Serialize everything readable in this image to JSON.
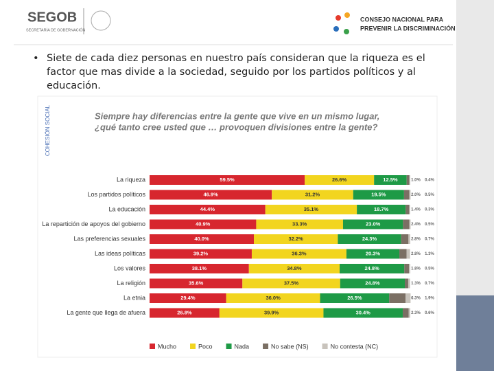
{
  "header": {
    "logo_left": "SEGOB",
    "logo_left_sub": "SECRETARÍA DE GOBERNACIÓN",
    "logo_right_line1": "CONSEJO NACIONAL PARA",
    "logo_right_line2": "PREVENIR LA DISCRIMINACIÓN"
  },
  "bullet": "Siete de cada diez personas en nuestro país consideran que la riqueza es el factor que mas divide a la sociedad, seguido por los partidos políticos y al educación.",
  "chart_data": {
    "type": "bar",
    "orientation": "horizontal",
    "stacked": true,
    "side_label": "COHESIÓN SOCIAL",
    "title": [
      "Siempre hay diferencias entre la gente que vive en un mismo lugar,",
      "¿qué tanto cree usted que … provoquen divisiones entre la gente?"
    ],
    "categories": [
      "La riqueza",
      "Los partidos políticos",
      "La educación",
      "La repartición de apoyos del gobierno",
      "Las preferencias sexuales",
      "Las ideas políticas",
      "Los valores",
      "La religión",
      "La etnia",
      "La gente que llega de afuera"
    ],
    "series": [
      {
        "name": "Mucho",
        "color": "#d7262e",
        "values": [
          59.5,
          46.9,
          44.4,
          40.9,
          40.0,
          39.2,
          38.1,
          35.6,
          29.4,
          26.8
        ],
        "value_labels": [
          "59.5%",
          "46.9%",
          "44.4%",
          "40.9%",
          "40.0%",
          "39.2%",
          "38.1%",
          "35.6%",
          "29.4%",
          "26.8%"
        ]
      },
      {
        "name": "Poco",
        "color": "#f2d51f",
        "values": [
          26.6,
          31.2,
          35.1,
          33.3,
          32.2,
          36.3,
          34.8,
          37.5,
          36.0,
          39.9
        ],
        "value_labels": [
          "26.6%",
          "31.2%",
          "35.1%",
          "33.3%",
          "32.2%",
          "36.3%",
          "34.8%",
          "37.5%",
          "36.0%",
          "39.9%"
        ]
      },
      {
        "name": "Nada",
        "color": "#1e9a46",
        "values": [
          12.5,
          19.5,
          18.7,
          23.0,
          24.3,
          20.3,
          24.8,
          24.8,
          26.5,
          30.4
        ],
        "value_labels": [
          "12.5%",
          "19.5%",
          "18.7%",
          "23.0%",
          "24.3%",
          "20.3%",
          "24.8%",
          "24.8%",
          "26.5%",
          "30.4%"
        ]
      },
      {
        "name": "No sabe (NS)",
        "color": "#7b6f64",
        "values": [
          1.0,
          2.0,
          1.4,
          2.4,
          2.8,
          2.8,
          1.8,
          1.3,
          6.3,
          2.3
        ],
        "value_labels": [
          "1.0%",
          "2.0%",
          "1.4%",
          "2.4%",
          "2.8%",
          "2.8%",
          "1.8%",
          "1.3%",
          "6.3%",
          "2.3%"
        ]
      },
      {
        "name": "No contesta (NC)",
        "color": "#c8c3bc",
        "values": [
          0.4,
          0.5,
          0.3,
          0.5,
          0.7,
          1.3,
          0.5,
          0.7,
          1.9,
          0.6
        ],
        "value_labels": [
          "0.4%",
          "0.5%",
          "0.3%",
          "0.5%",
          "0.7%",
          "1.3%",
          "0.5%",
          "0.7%",
          "1.9%",
          "0.6%"
        ]
      }
    ]
  }
}
